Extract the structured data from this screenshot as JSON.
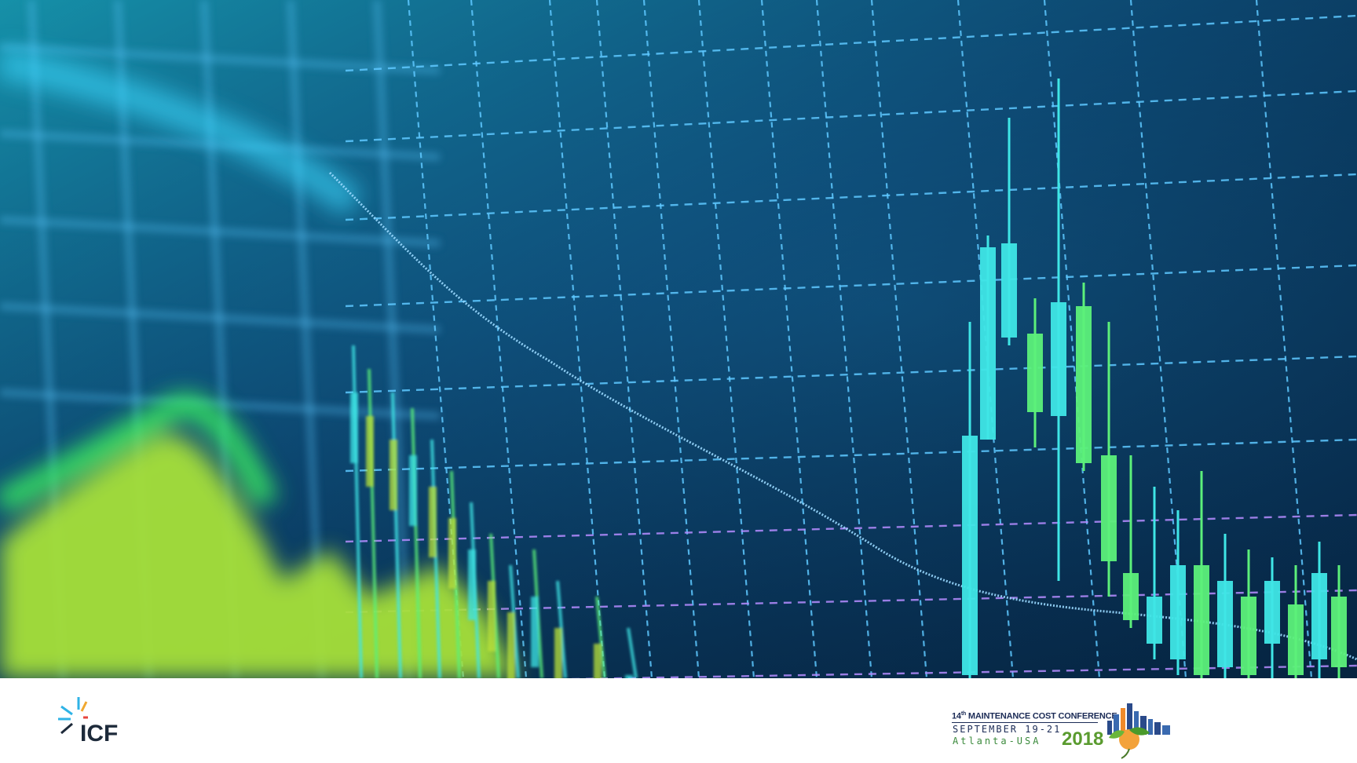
{
  "slide": {
    "background_image": "blurred financial candlestick chart on blue grid screen",
    "colors": {
      "grid": "#5ec8ff",
      "grid_purple": "#b58cff",
      "candle_cyan": "#3fe6e6",
      "candle_green": "#5cf07a",
      "area_green": "#b9e23a",
      "line": "#9ad9ff"
    }
  },
  "footer": {
    "icf_logo": {
      "text": "ICF",
      "icon": "icf-starburst-icon"
    },
    "conference_logo": {
      "line1_ordinal": "14",
      "line1_suffix": "th",
      "line1_rest": " MAINTENANCE COST CONFERENCE",
      "line2": "SEPTEMBER 19-21",
      "line3": "Atlanta-USA",
      "year": "2018",
      "icon": "atlanta-skyline-peach-icon"
    }
  }
}
